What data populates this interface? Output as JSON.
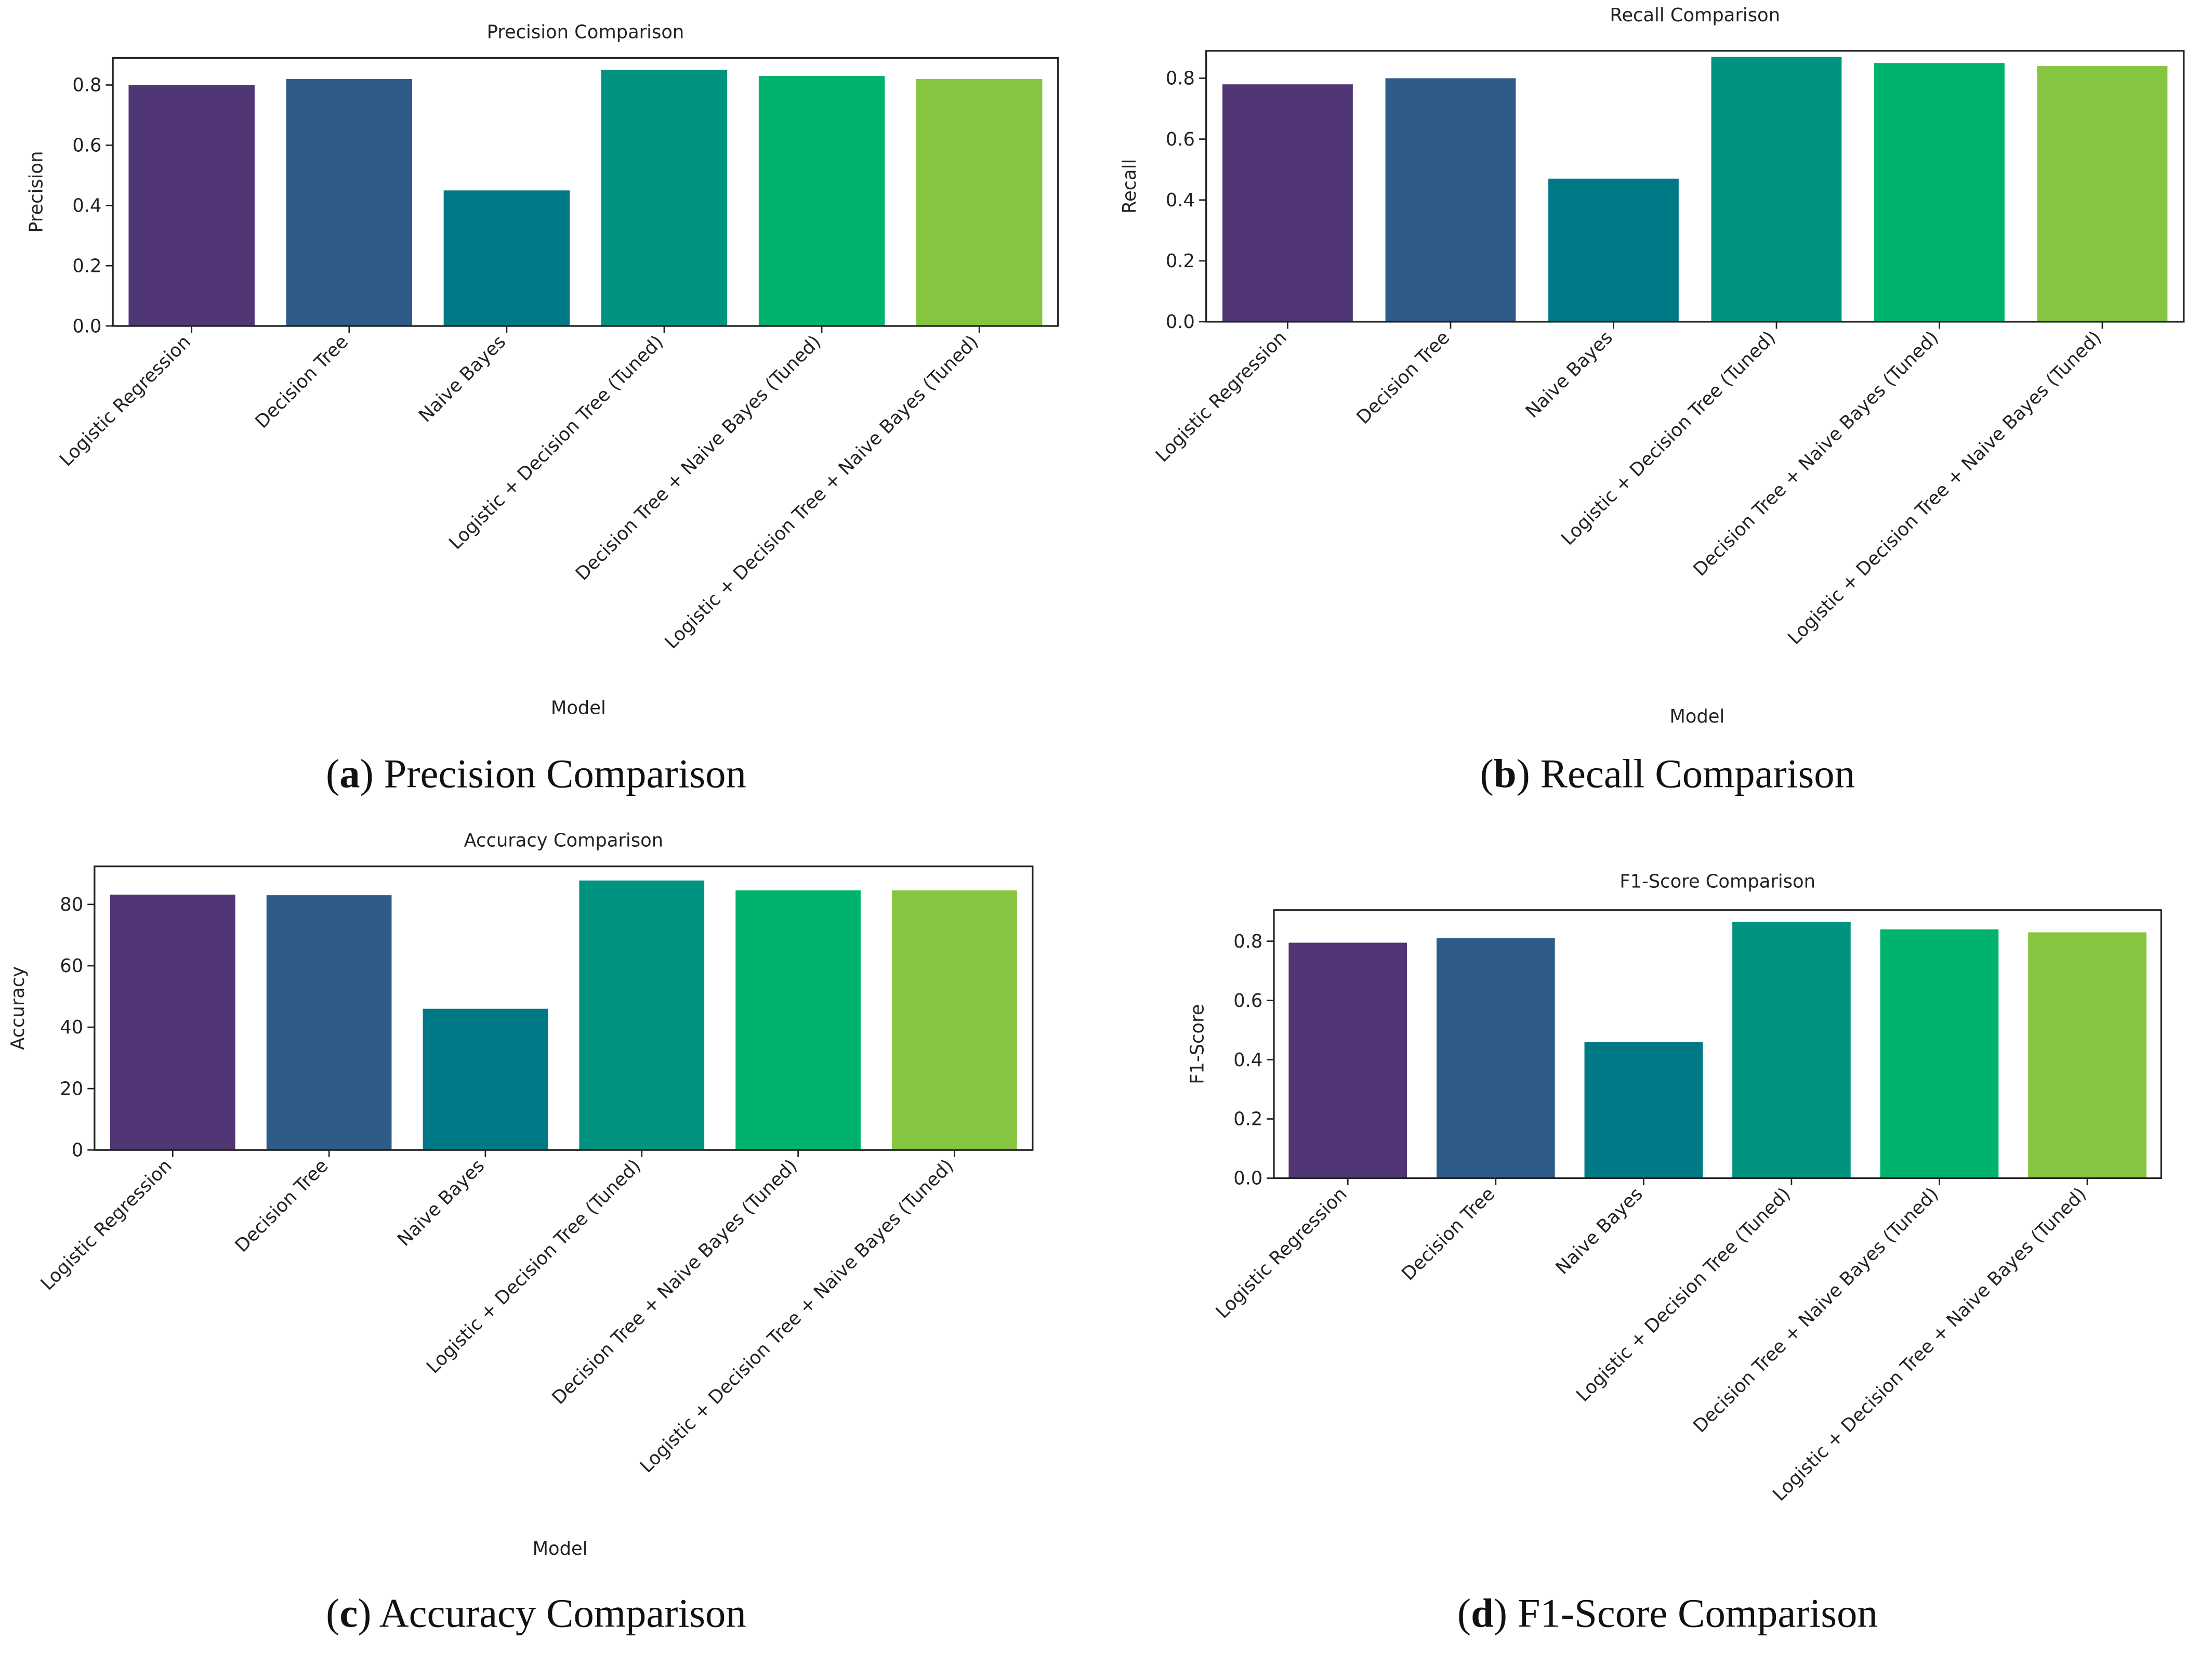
{
  "chart_data": [
    {
      "type": "bar",
      "title": "Precision Comparison",
      "x_label": "Model",
      "y_label": "Precision",
      "caption": [
        "(",
        "a",
        ") Precision Comparison"
      ],
      "categories": [
        "Logistic Regression",
        "Decision Tree",
        "Naive Bayes",
        "Logistic + Decision Tree (Tuned)",
        "Decision Tree + Naive Bayes (Tuned)",
        "Logistic + Decision Tree + Naive Bayes (Tuned)"
      ],
      "values": [
        0.8,
        0.82,
        0.45,
        0.85,
        0.83,
        0.82
      ],
      "colors": [
        "#513675",
        "#2e5b87",
        "#007986",
        "#00937f",
        "#00b36c",
        "#86c540"
      ],
      "ylim": [
        0,
        0.89
      ],
      "yticks": [
        {
          "value": 0,
          "label": "0.0"
        },
        0.2,
        0.4,
        0.6,
        0.8
      ]
    },
    {
      "type": "bar",
      "title": "Recall Comparison",
      "x_label": "Model",
      "y_label": "Recall",
      "caption": [
        "(",
        "b",
        ") Recall Comparison"
      ],
      "categories": [
        "Logistic Regression",
        "Decision Tree",
        "Naive Bayes",
        "Logistic + Decision Tree (Tuned)",
        "Decision Tree + Naive Bayes (Tuned)",
        "Logistic + Decision Tree + Naive Bayes (Tuned)"
      ],
      "values": [
        0.78,
        0.8,
        0.47,
        0.87,
        0.85,
        0.84
      ],
      "colors": [
        "#513675",
        "#2e5b87",
        "#007986",
        "#00937f",
        "#00b36c",
        "#86c540"
      ],
      "ylim": [
        0,
        0.89
      ],
      "yticks": [
        {
          "value": 0,
          "label": "0.0"
        },
        0.2,
        0.4,
        0.6,
        0.8
      ]
    },
    {
      "type": "bar",
      "title": "Accuracy Comparison",
      "x_label": "Model",
      "y_label": "Accuracy",
      "caption": [
        "(",
        "c",
        ") Accuracy Comparison"
      ],
      "categories": [
        "Logistic Regression",
        "Decision Tree",
        "Naive Bayes",
        "Logistic + Decision Tree (Tuned)",
        "Decision Tree + Naive Bayes (Tuned)",
        "Logistic + Decision Tree + Naive Bayes (Tuned)"
      ],
      "values": [
        83.2,
        83,
        46,
        87.8,
        84.6,
        84.6
      ],
      "colors": [
        "#513675",
        "#2e5b87",
        "#007986",
        "#00937f",
        "#00b36c",
        "#86c540"
      ],
      "ylim": [
        0,
        92.4
      ],
      "yticks": [
        0,
        20,
        40,
        60,
        80
      ]
    },
    {
      "type": "bar",
      "title": "F1-Score Comparison",
      "y_label": "F1-Score",
      "caption": [
        "(",
        "d",
        ") F1-Score Comparison"
      ],
      "categories": [
        "Logistic Regression",
        "Decision Tree",
        "Naive Bayes",
        "Logistic + Decision Tree (Tuned)",
        "Decision Tree + Naive Bayes (Tuned)",
        "Logistic + Decision Tree + Naive Bayes (Tuned)"
      ],
      "values": [
        0.795,
        0.81,
        0.46,
        0.865,
        0.84,
        0.83
      ],
      "colors": [
        "#513675",
        "#2e5b87",
        "#007986",
        "#00937f",
        "#00b36c",
        "#86c540"
      ],
      "ylim": [
        0,
        0.905
      ],
      "yticks": [
        {
          "value": 0,
          "label": "0.0"
        },
        0.2,
        0.4,
        0.6,
        0.8
      ]
    }
  ]
}
